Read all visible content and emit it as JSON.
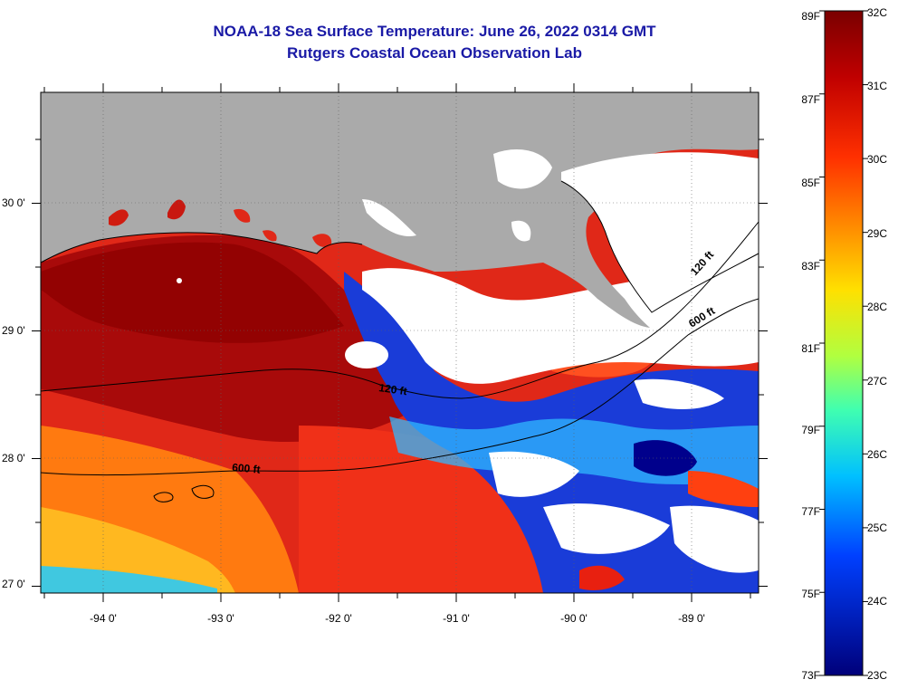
{
  "header": {
    "title": "NOAA-18 Sea Surface Temperature:  June 26, 2022 0314 GMT",
    "subtitle": "Rutgers Coastal Ocean Observation Lab"
  },
  "map": {
    "lat_labels": [
      "30 0'",
      "29 0'",
      "28 0'",
      "27 0'"
    ],
    "lon_labels": [
      "-94 0'",
      "-93 0'",
      "-92 0'",
      "-91 0'",
      "-90 0'",
      "-89 0'"
    ],
    "isobaths": [
      {
        "label": "120 ft"
      },
      {
        "label": "600 ft"
      }
    ],
    "colors": {
      "land": "#aaaaaa",
      "cloud": "#ffffff",
      "warm": "#cc1010",
      "cool": "#00008c"
    }
  },
  "colorbar": {
    "fahrenheit_labels": [
      "89F",
      "87F",
      "85F",
      "83F",
      "81F",
      "79F",
      "77F",
      "75F",
      "73F"
    ],
    "celsius_labels": [
      "32C",
      "31C",
      "30C",
      "29C",
      "28C",
      "27C",
      "26C",
      "25C",
      "24C",
      "23C"
    ],
    "range_f": [
      73,
      89
    ],
    "range_c": [
      23,
      32
    ]
  }
}
